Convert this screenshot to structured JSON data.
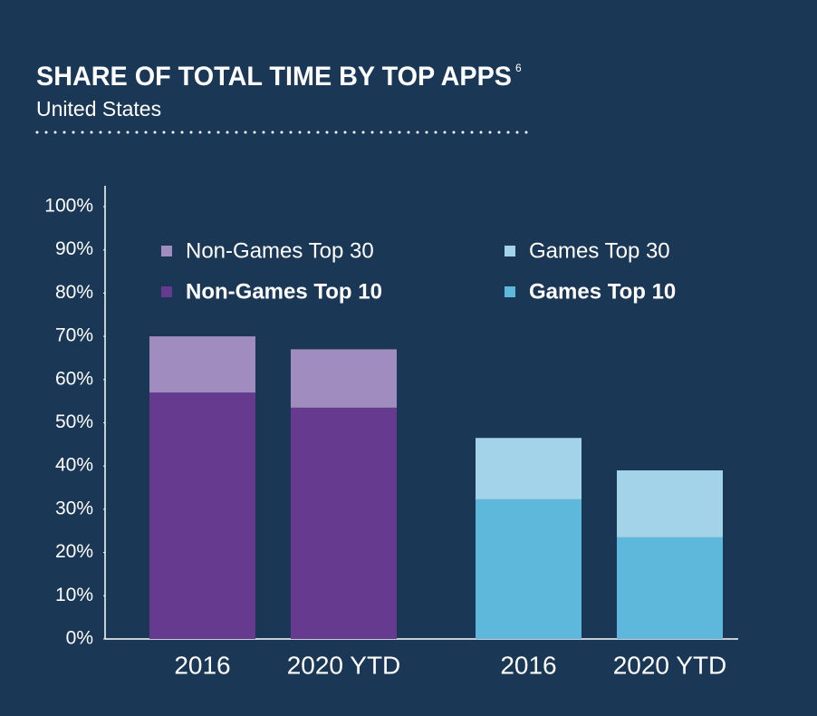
{
  "chart_data": {
    "type": "stacked_bar",
    "title": "SHARE OF TOTAL TIME BY TOP APPS",
    "title_note": "6",
    "subtitle": "United States",
    "categories": [
      "2016",
      "2020 YTD",
      "2016",
      "2020 YTD"
    ],
    "series": [
      {
        "name": "Non-Games Top 10",
        "color": "#663a8f",
        "values": [
          57,
          53.5,
          null,
          null
        ]
      },
      {
        "name": "Non-Games Top 30",
        "color": "#a08cbf",
        "values": [
          13,
          13.5,
          null,
          null
        ]
      },
      {
        "name": "Games Top 10",
        "color": "#5db8dc",
        "values": [
          null,
          null,
          32.3,
          23.5
        ]
      },
      {
        "name": "Games Top 30",
        "color": "#a3d3e8",
        "values": [
          null,
          null,
          14.2,
          15.5
        ]
      }
    ],
    "ylim": [
      0,
      100
    ],
    "yticks": [
      {
        "value": 0,
        "label": "0%"
      },
      {
        "value": 10,
        "label": "10%"
      },
      {
        "value": 20,
        "label": "20%"
      },
      {
        "value": 30,
        "label": "30%"
      },
      {
        "value": 40,
        "label": "40%"
      },
      {
        "value": 50,
        "label": "50%"
      },
      {
        "value": 60,
        "label": "60%"
      },
      {
        "value": 70,
        "label": "70%"
      },
      {
        "value": 80,
        "label": "80%"
      },
      {
        "value": 90,
        "label": "90%"
      },
      {
        "value": 100,
        "label": "100%"
      }
    ]
  }
}
